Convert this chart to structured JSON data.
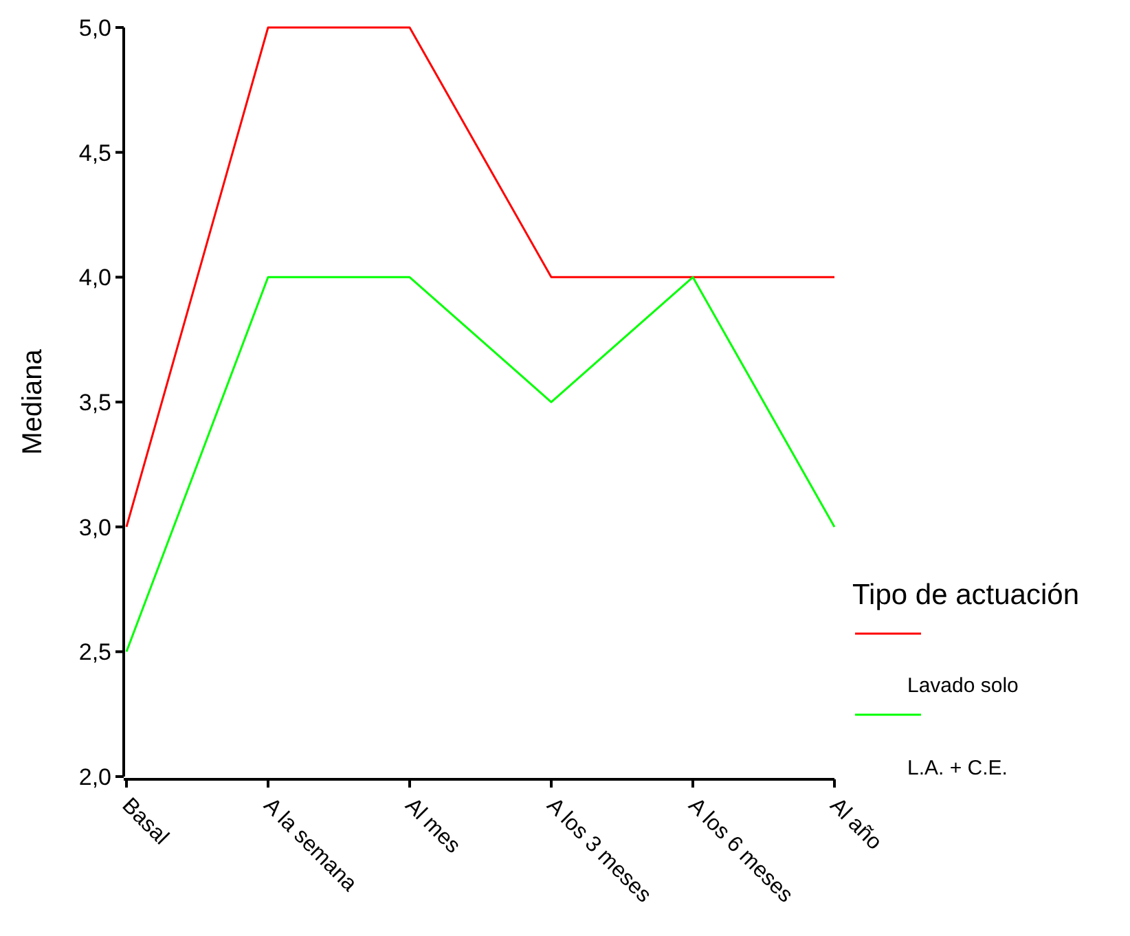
{
  "chart_data": {
    "type": "line",
    "ylabel": "Mediana",
    "legend_title": "Tipo de actuación",
    "legend": "right",
    "grid": false,
    "categories": [
      "Basal",
      "A la semana",
      "Al mes",
      "A los 3 meses",
      "A los 6 meses",
      "Al año"
    ],
    "ylim": [
      2,
      5
    ],
    "yticks": [
      {
        "value": 2,
        "label": "2,0"
      },
      {
        "value": 2.5,
        "label": "2,5"
      },
      {
        "value": 3,
        "label": "3,0"
      },
      {
        "value": 3.5,
        "label": "3,5"
      },
      {
        "value": 4,
        "label": "4,0"
      },
      {
        "value": 4.5,
        "label": "4,5"
      },
      {
        "value": 5,
        "label": "5,0"
      }
    ],
    "series": [
      {
        "name": "Lavado solo",
        "color": "#ff0000",
        "values": [
          3,
          5,
          5,
          4,
          4,
          4
        ]
      },
      {
        "name": "L.A. + C.E.",
        "color": "#00ff00",
        "values": [
          2.5,
          4,
          4,
          3.5,
          4,
          3
        ]
      }
    ]
  }
}
